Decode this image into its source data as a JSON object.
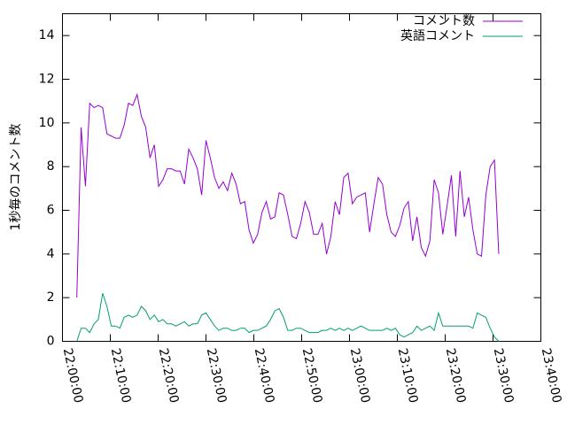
{
  "chart_data": {
    "type": "line",
    "ylabel": "1秒毎のコメント数",
    "xlim": [
      "22:00:00",
      "23:40:00"
    ],
    "xticks": [
      "22:00:00",
      "22:10:00",
      "22:20:00",
      "22:30:00",
      "22:40:00",
      "22:50:00",
      "23:00:00",
      "23:10:00",
      "23:20:00",
      "23:30:00",
      "23:40:00"
    ],
    "ylim": [
      0,
      15
    ],
    "yticks": [
      0,
      2,
      4,
      6,
      8,
      10,
      12,
      14
    ],
    "legend": "top-right",
    "x": [
      "22:03:00",
      "22:03:54",
      "22:04:48",
      "22:05:42",
      "22:06:36",
      "22:07:30",
      "22:08:24",
      "22:09:18",
      "22:10:12",
      "22:11:06",
      "22:12:00",
      "22:12:54",
      "22:13:48",
      "22:14:42",
      "22:15:36",
      "22:16:30",
      "22:17:24",
      "22:18:18",
      "22:19:12",
      "22:20:06",
      "22:21:00",
      "22:21:54",
      "22:22:48",
      "22:23:42",
      "22:24:36",
      "22:25:30",
      "22:26:24",
      "22:27:18",
      "22:28:12",
      "22:29:06",
      "22:30:00",
      "22:30:54",
      "22:31:48",
      "22:32:42",
      "22:33:36",
      "22:34:30",
      "22:35:24",
      "22:36:18",
      "22:37:12",
      "22:38:06",
      "22:39:00",
      "22:39:54",
      "22:40:48",
      "22:41:42",
      "22:42:36",
      "22:43:30",
      "22:44:24",
      "22:45:18",
      "22:46:12",
      "22:47:06",
      "22:48:00",
      "22:48:54",
      "22:49:48",
      "22:50:42",
      "22:51:36",
      "22:52:30",
      "22:53:24",
      "22:54:18",
      "22:55:12",
      "22:56:06",
      "22:57:00",
      "22:57:54",
      "22:58:48",
      "22:59:42",
      "23:00:36",
      "23:01:30",
      "23:02:24",
      "23:03:18",
      "23:04:12",
      "23:05:06",
      "23:06:00",
      "23:06:54",
      "23:07:48",
      "23:08:42",
      "23:09:36",
      "23:10:30",
      "23:11:24",
      "23:12:18",
      "23:13:12",
      "23:14:06",
      "23:15:00",
      "23:15:54",
      "23:16:48",
      "23:17:42",
      "23:18:36",
      "23:19:30",
      "23:20:24",
      "23:21:18",
      "23:22:12",
      "23:23:06",
      "23:24:00",
      "23:24:54",
      "23:25:48",
      "23:26:42",
      "23:27:36",
      "23:28:30",
      "23:29:24",
      "23:30:18",
      "23:31:12"
    ],
    "series": [
      {
        "name": "コメント数",
        "color": "#9400d3",
        "values": [
          2.0,
          9.8,
          7.1,
          10.9,
          10.7,
          10.8,
          10.7,
          9.5,
          9.4,
          9.3,
          9.3,
          9.9,
          10.9,
          10.8,
          11.3,
          10.3,
          9.8,
          8.4,
          9.0,
          7.1,
          7.4,
          7.9,
          7.9,
          7.8,
          7.8,
          7.2,
          8.8,
          8.4,
          7.9,
          6.7,
          9.2,
          8.4,
          7.5,
          7.0,
          7.3,
          6.9,
          7.7,
          7.2,
          6.3,
          6.4,
          5.1,
          4.5,
          4.9,
          5.9,
          6.4,
          5.6,
          5.7,
          6.8,
          6.7,
          5.8,
          4.8,
          4.7,
          5.4,
          6.4,
          5.9,
          4.9,
          4.9,
          5.4,
          4.0,
          4.8,
          6.4,
          5.8,
          7.5,
          7.7,
          6.3,
          6.6,
          6.7,
          6.8,
          5.0,
          6.3,
          7.5,
          7.2,
          5.8,
          5.0,
          4.8,
          5.3,
          6.1,
          6.4,
          4.6,
          5.7,
          4.3,
          3.9,
          4.6,
          7.4,
          6.8,
          4.9,
          6.2,
          7.6,
          4.8,
          7.8,
          5.7,
          6.6,
          5.1,
          4.0,
          3.9,
          6.7,
          8.0,
          8.3,
          4.0
        ]
      },
      {
        "name": "英語コメント",
        "color": "#009e73",
        "values": [
          0,
          0.6,
          0.6,
          0.4,
          0.8,
          1.0,
          2.2,
          1.6,
          0.7,
          0.7,
          0.6,
          1.1,
          1.2,
          1.1,
          1.2,
          1.6,
          1.4,
          1.0,
          1.2,
          0.9,
          1.0,
          0.8,
          0.8,
          0.7,
          0.8,
          0.9,
          0.7,
          0.8,
          0.8,
          1.2,
          1.3,
          1.0,
          0.7,
          0.5,
          0.6,
          0.6,
          0.5,
          0.5,
          0.6,
          0.6,
          0.4,
          0.5,
          0.5,
          0.6,
          0.7,
          1.0,
          1.4,
          1.5,
          1.1,
          0.5,
          0.5,
          0.6,
          0.6,
          0.5,
          0.4,
          0.4,
          0.4,
          0.5,
          0.5,
          0.6,
          0.5,
          0.6,
          0.5,
          0.6,
          0.5,
          0.6,
          0.7,
          0.6,
          0.5,
          0.5,
          0.5,
          0.5,
          0.6,
          0.5,
          0.6,
          0.3,
          0.2,
          0.3,
          0.4,
          0.7,
          0.5,
          0.6,
          0.7,
          0.5,
          1.3,
          0.7,
          0.7,
          0.7,
          0.7,
          0.7,
          0.7,
          0.7,
          0.6,
          1.3,
          1.2,
          1.1,
          0.6,
          0.2,
          0
        ]
      }
    ]
  }
}
